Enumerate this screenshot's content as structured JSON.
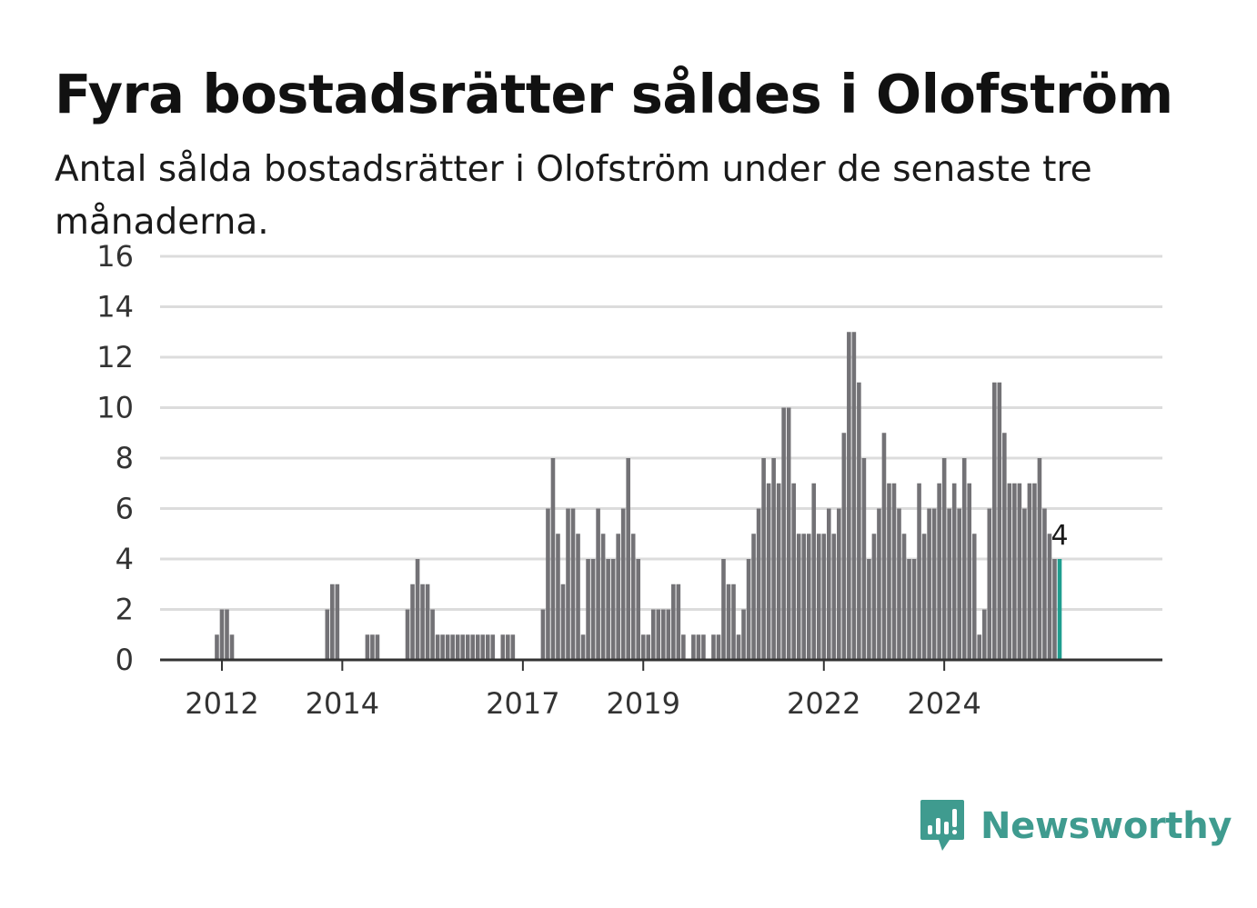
{
  "header": {
    "title": "Fyra bostadsrätter såldes i Olofström",
    "subtitle": "Antal sålda bostadsrätter i Olofström under de senaste tre månaderna."
  },
  "brand": {
    "name": "Newsworthy",
    "color": "#3f9b8f",
    "icon": "newsworthy-logo-icon"
  },
  "chart_data": {
    "type": "bar",
    "title": "Fyra bostadsrätter såldes i Olofström",
    "subtitle": "Antal sålda bostadsrätter i Olofström under de senaste tre månaderna.",
    "xlabel": "",
    "ylabel": "",
    "ylim": [
      0,
      16
    ],
    "y_ticks": [
      0,
      2,
      4,
      6,
      8,
      10,
      12,
      14,
      16
    ],
    "x_ticks": [
      "2012",
      "2014",
      "2017",
      "2019",
      "2022",
      "2024"
    ],
    "grid": true,
    "bar_color": "#737276",
    "highlight_color": "#1f9e8f",
    "highlight_label": "4",
    "start": "2011-01",
    "values": [
      0,
      0,
      0,
      0,
      0,
      0,
      0,
      0,
      0,
      0,
      0,
      1,
      2,
      2,
      1,
      0,
      0,
      0,
      0,
      0,
      0,
      0,
      0,
      0,
      0,
      0,
      0,
      0,
      0,
      0,
      0,
      0,
      0,
      2,
      3,
      3,
      0,
      0,
      0,
      0,
      0,
      1,
      1,
      1,
      0,
      0,
      0,
      0,
      0,
      2,
      3,
      4,
      3,
      3,
      2,
      1,
      1,
      1,
      1,
      1,
      1,
      1,
      1,
      1,
      1,
      1,
      1,
      0,
      1,
      1,
      1,
      0,
      0,
      0,
      0,
      0,
      2,
      6,
      8,
      5,
      3,
      6,
      6,
      5,
      1,
      4,
      4,
      6,
      5,
      4,
      4,
      5,
      6,
      8,
      5,
      4,
      1,
      1,
      2,
      2,
      2,
      2,
      3,
      3,
      1,
      0,
      1,
      1,
      1,
      0,
      1,
      1,
      4,
      3,
      3,
      1,
      2,
      4,
      5,
      6,
      8,
      7,
      8,
      7,
      10,
      10,
      7,
      5,
      5,
      5,
      7,
      5,
      5,
      6,
      5,
      6,
      9,
      13,
      13,
      11,
      8,
      4,
      5,
      6,
      9,
      7,
      7,
      6,
      5,
      4,
      4,
      7,
      5,
      6,
      6,
      7,
      8,
      6,
      7,
      6,
      8,
      7,
      5,
      1,
      2,
      6,
      11,
      11,
      9,
      7,
      7,
      7,
      6,
      7,
      7,
      8,
      6,
      5,
      4,
      4
    ]
  }
}
